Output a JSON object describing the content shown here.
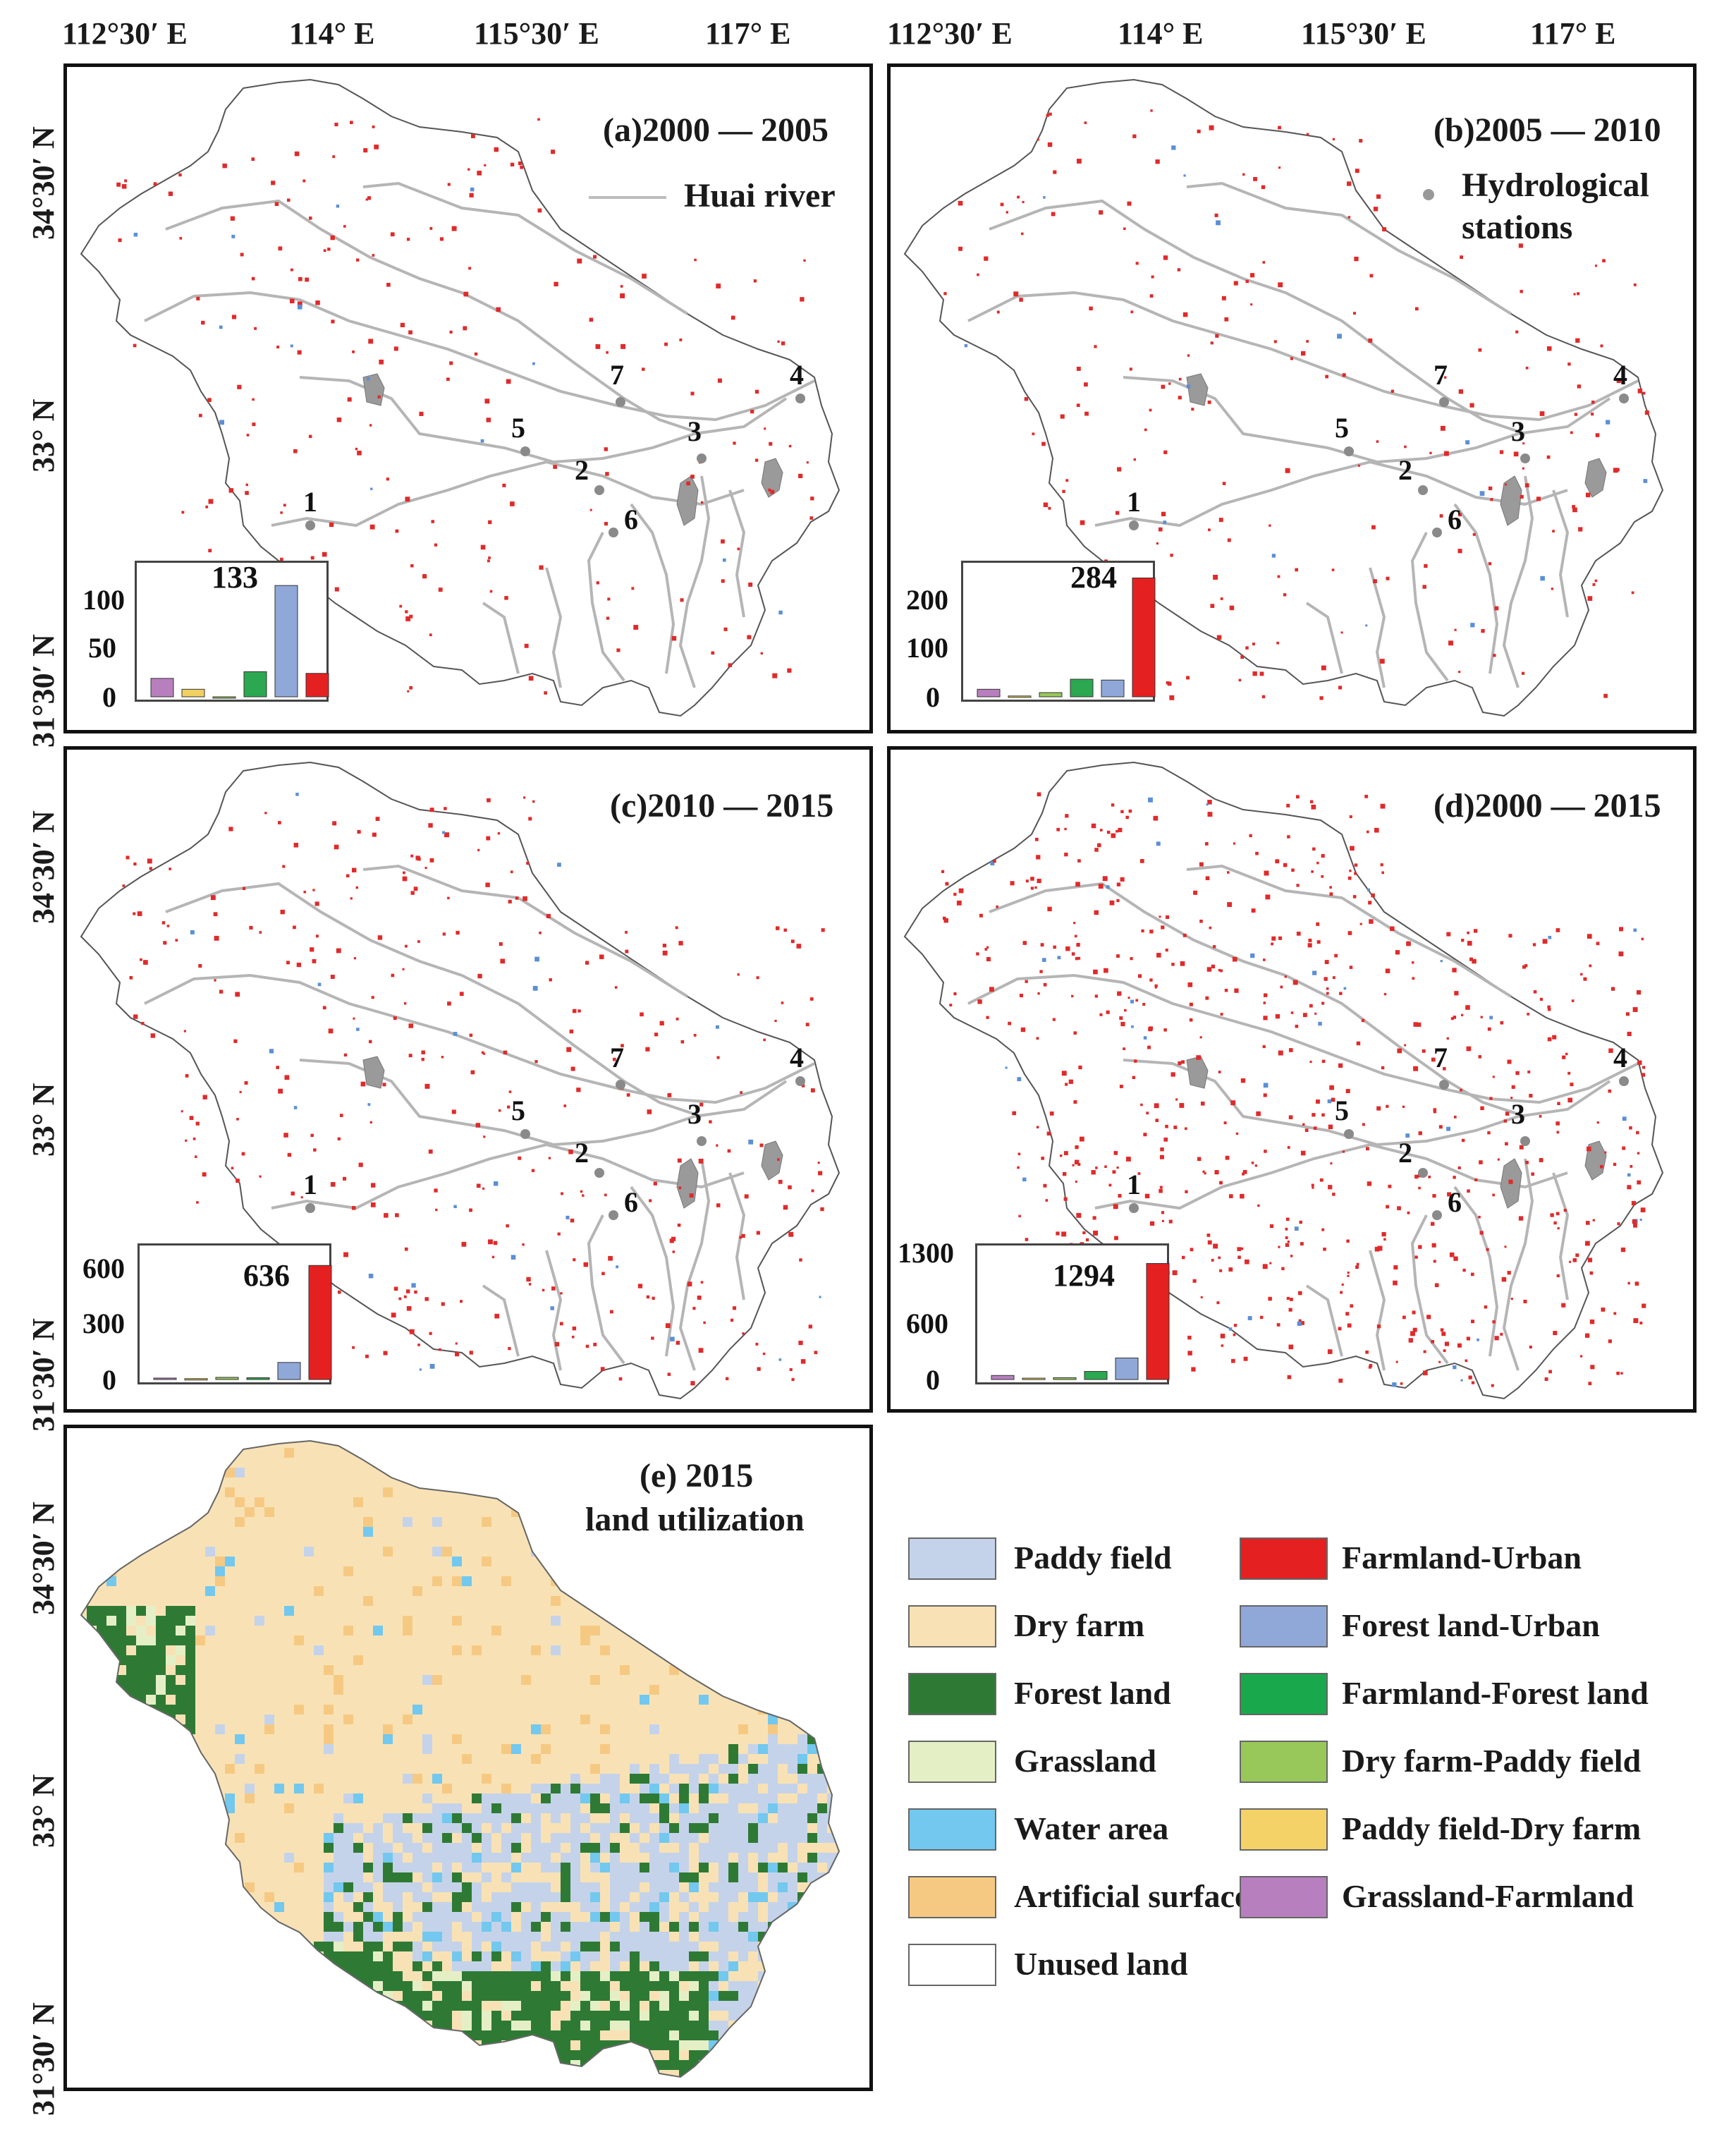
{
  "longitudes": [
    "112°30′ E",
    "114° E",
    "115°30′ E",
    "117° E"
  ],
  "latitudes": [
    "34°30′ N",
    "33° N",
    "31°30′ N"
  ],
  "river_legend": "Huai river",
  "station_legend": [
    "Hydrological",
    "stations"
  ],
  "station_labels": [
    "1",
    "2",
    "3",
    "4",
    "5",
    "6",
    "7"
  ],
  "panels": [
    {
      "title": "(a)2000 — 2005",
      "peak_label": "133",
      "y_ticks": [
        "100",
        "50",
        "0"
      ],
      "y_max": 150,
      "values": [
        22,
        9,
        0,
        30,
        133,
        28
      ]
    },
    {
      "title": "(b)2005 — 2010",
      "peak_label": "284",
      "y_ticks": [
        "200",
        "100",
        "0"
      ],
      "y_max": 300,
      "values": [
        18,
        2,
        10,
        42,
        40,
        284
      ]
    },
    {
      "title": "(c)2010 — 2015",
      "peak_label": "636",
      "y_ticks": [
        "600",
        "300",
        "0"
      ],
      "y_max": 700,
      "values": [
        8,
        5,
        12,
        10,
        95,
        636
      ]
    },
    {
      "title": "(d)2000 — 2015",
      "peak_label": "1294",
      "y_ticks": [
        "1300",
        "600",
        "0"
      ],
      "y_max": 1400,
      "values": [
        45,
        15,
        20,
        90,
        240,
        1294
      ]
    }
  ],
  "bar_colors": [
    "#b87fbf",
    "#f0d060",
    "#98c85a",
    "#2ca850",
    "#8fa8d8",
    "#e52020"
  ],
  "panel_e_title": [
    "(e) 2015",
    "land utilization"
  ],
  "legend_left": [
    {
      "label": "Paddy field",
      "color": "#c5d3ea"
    },
    {
      "label": "Dry farm",
      "color": "#f8e2b5"
    },
    {
      "label": "Forest land",
      "color": "#2e7a35"
    },
    {
      "label": "Grassland",
      "color": "#e5efc6"
    },
    {
      "label": "Water area",
      "color": "#72c8ee"
    },
    {
      "label": "Artificial surfaces",
      "color": "#f6c983"
    },
    {
      "label": "Unused land",
      "color": "#ffffff"
    }
  ],
  "legend_right": [
    {
      "label": "Farmland-Urban",
      "color": "#e52020"
    },
    {
      "label": "Forest land-Urban",
      "color": "#8fa8d8"
    },
    {
      "label": "Farmland-Forest land",
      "color": "#1aa84c"
    },
    {
      "label": "Dry farm-Paddy field",
      "color": "#98c85a"
    },
    {
      "label": "Paddy field-Dry farm",
      "color": "#f5d268"
    },
    {
      "label": "Grassland-Farmland",
      "color": "#b87fbf"
    }
  ]
}
